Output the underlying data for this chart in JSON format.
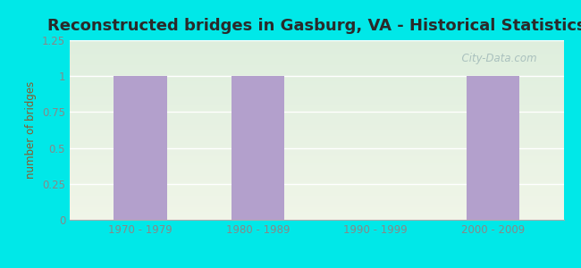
{
  "title": "Reconstructed bridges in Gasburg, VA - Historical Statistics",
  "categories": [
    "1970 - 1979",
    "1980 - 1989",
    "1990 - 1999",
    "2000 - 2009"
  ],
  "values": [
    1,
    1,
    0,
    1
  ],
  "bar_color": "#b3a0cc",
  "ylabel": "number of bridges",
  "ylim": [
    0,
    1.25
  ],
  "yticks": [
    0,
    0.25,
    0.5,
    0.75,
    1,
    1.25
  ],
  "background_color": "#00e8e8",
  "plot_bg_color_top": "#deeedd",
  "plot_bg_color_bottom": "#f0f5e8",
  "title_fontsize": 13,
  "title_color": "#2a2a2a",
  "axis_label_color": "#8b5a2b",
  "tick_label_color": "#888888",
  "watermark": "  City-Data.com",
  "grid_color": "#ffffff"
}
